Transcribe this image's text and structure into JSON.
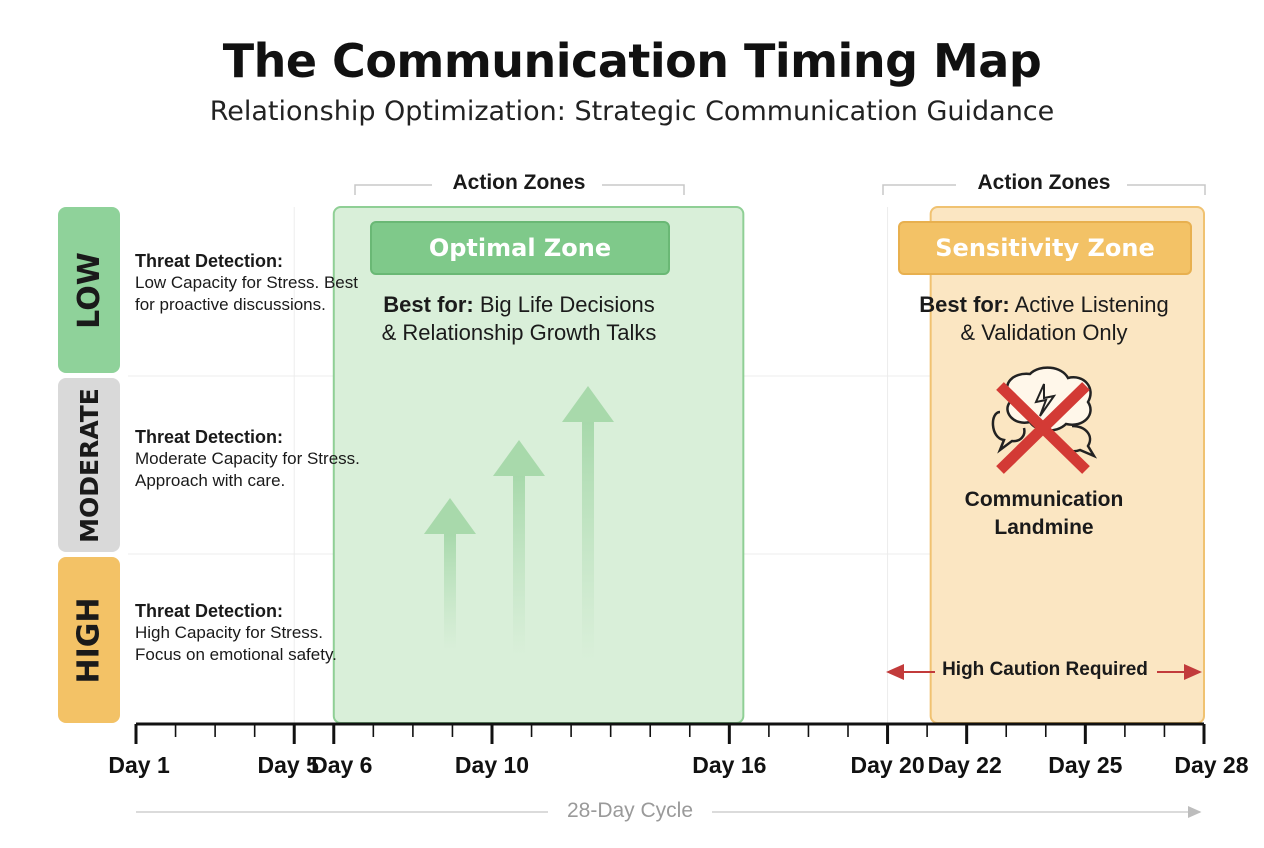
{
  "header": {
    "title": "The Communication Timing Map",
    "subtitle": "Relationship Optimization: Strategic Communication Guidance"
  },
  "rows": [
    {
      "tab": "LOW",
      "color": "#8fd29a",
      "heading": "Threat Detection:",
      "text": "Low Capacity for Stress. Best for proactive discussions."
    },
    {
      "tab": "MODERATE",
      "color": "#d9d9d9",
      "heading": "Threat Detection:",
      "text": "Moderate Capacity for Stress. Approach with care."
    },
    {
      "tab": "HIGH",
      "color": "#f3c266",
      "heading": "Threat Detection:",
      "text": "High Capacity for Stress. Focus on emotional safety."
    }
  ],
  "zones": {
    "optimal": {
      "bracket_label": "Action Zones",
      "title": "Optimal Zone",
      "best_label": "Best for:",
      "best_line1": "Big Life Decisions",
      "best_line2": "& Relationship Growth Talks",
      "start_day": 6,
      "end_day": 16,
      "fill": "#d9efd9",
      "border": "#8fcf95"
    },
    "sensitivity": {
      "bracket_label": "Action Zones",
      "title": "Sensitivity Zone",
      "best_label": "Best for:",
      "best_line1": "Active Listening",
      "best_line2": "& Validation Only",
      "landmine_line1": "Communication",
      "landmine_line2": "Landmine",
      "landmine_icon": "crossed-speech-bubbles-icon",
      "caution": "High Caution Required",
      "start_day": 22,
      "end_day": 28,
      "fill": "#fbe6c2",
      "border": "#f0c271"
    }
  },
  "timeline": {
    "days": [
      {
        "day": 1,
        "label": "Day 1"
      },
      {
        "day": 5,
        "label": "Day 5"
      },
      {
        "day": 6,
        "label": "Day 6"
      },
      {
        "day": 10,
        "label": "Day 10"
      },
      {
        "day": 16,
        "label": "Day 16"
      },
      {
        "day": 20,
        "label": "Day 20"
      },
      {
        "day": 22,
        "label": "Day 22"
      },
      {
        "day": 25,
        "label": "Day 25"
      },
      {
        "day": 28,
        "label": "Day 28"
      }
    ],
    "cycle_label": "28-Day Cycle",
    "min_day": 1,
    "max_day": 28
  }
}
